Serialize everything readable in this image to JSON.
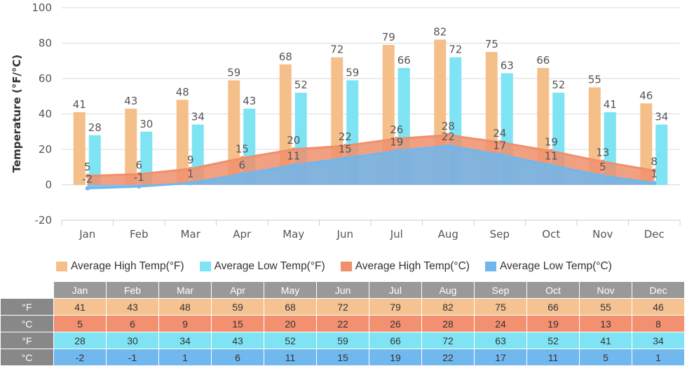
{
  "chart_data": {
    "type": "bar",
    "categories": [
      "Jan",
      "Feb",
      "Mar",
      "Apr",
      "May",
      "Jun",
      "Jul",
      "Aug",
      "Sep",
      "Oct",
      "Nov",
      "Dec"
    ],
    "ylabel": "Temperature (°F/°C)",
    "ylim": [
      -20,
      100
    ],
    "yticks": [
      -20,
      0,
      20,
      40,
      60,
      80,
      100
    ],
    "grid": true,
    "legend_position": "bottom",
    "series": [
      {
        "name": "Average High Temp(°F)",
        "kind": "bar",
        "color": "#f5bf8a",
        "values": [
          41,
          43,
          48,
          59,
          68,
          72,
          79,
          82,
          75,
          66,
          55,
          46
        ]
      },
      {
        "name": "Average Low Temp(°F)",
        "kind": "bar",
        "color": "#7ee3f3",
        "values": [
          28,
          30,
          34,
          43,
          52,
          59,
          66,
          72,
          63,
          52,
          41,
          34
        ]
      },
      {
        "name": "Average High Temp(°C)",
        "kind": "area",
        "color": "#f08f6c",
        "values": [
          5,
          6,
          9,
          15,
          20,
          22,
          26,
          28,
          24,
          19,
          13,
          8
        ]
      },
      {
        "name": "Average Low Temp(°C)",
        "kind": "area",
        "color": "#6fb7ee",
        "values": [
          -2,
          -1,
          1,
          6,
          11,
          15,
          19,
          22,
          17,
          11,
          5,
          1
        ]
      }
    ]
  },
  "table": {
    "rows": [
      {
        "unit": "°F",
        "color": "#f5c291",
        "values": [
          41,
          43,
          48,
          59,
          68,
          72,
          79,
          82,
          75,
          66,
          55,
          46
        ]
      },
      {
        "unit": "°C",
        "color": "#f3906f",
        "values": [
          5,
          6,
          9,
          15,
          20,
          22,
          26,
          28,
          24,
          19,
          13,
          8
        ]
      },
      {
        "unit": "°F",
        "color": "#80e3f4",
        "values": [
          28,
          30,
          34,
          43,
          52,
          59,
          66,
          72,
          63,
          52,
          41,
          34
        ]
      },
      {
        "unit": "°C",
        "color": "#71b8ef",
        "values": [
          -2,
          -1,
          1,
          6,
          11,
          15,
          19,
          22,
          17,
          11,
          5,
          1
        ]
      }
    ]
  }
}
